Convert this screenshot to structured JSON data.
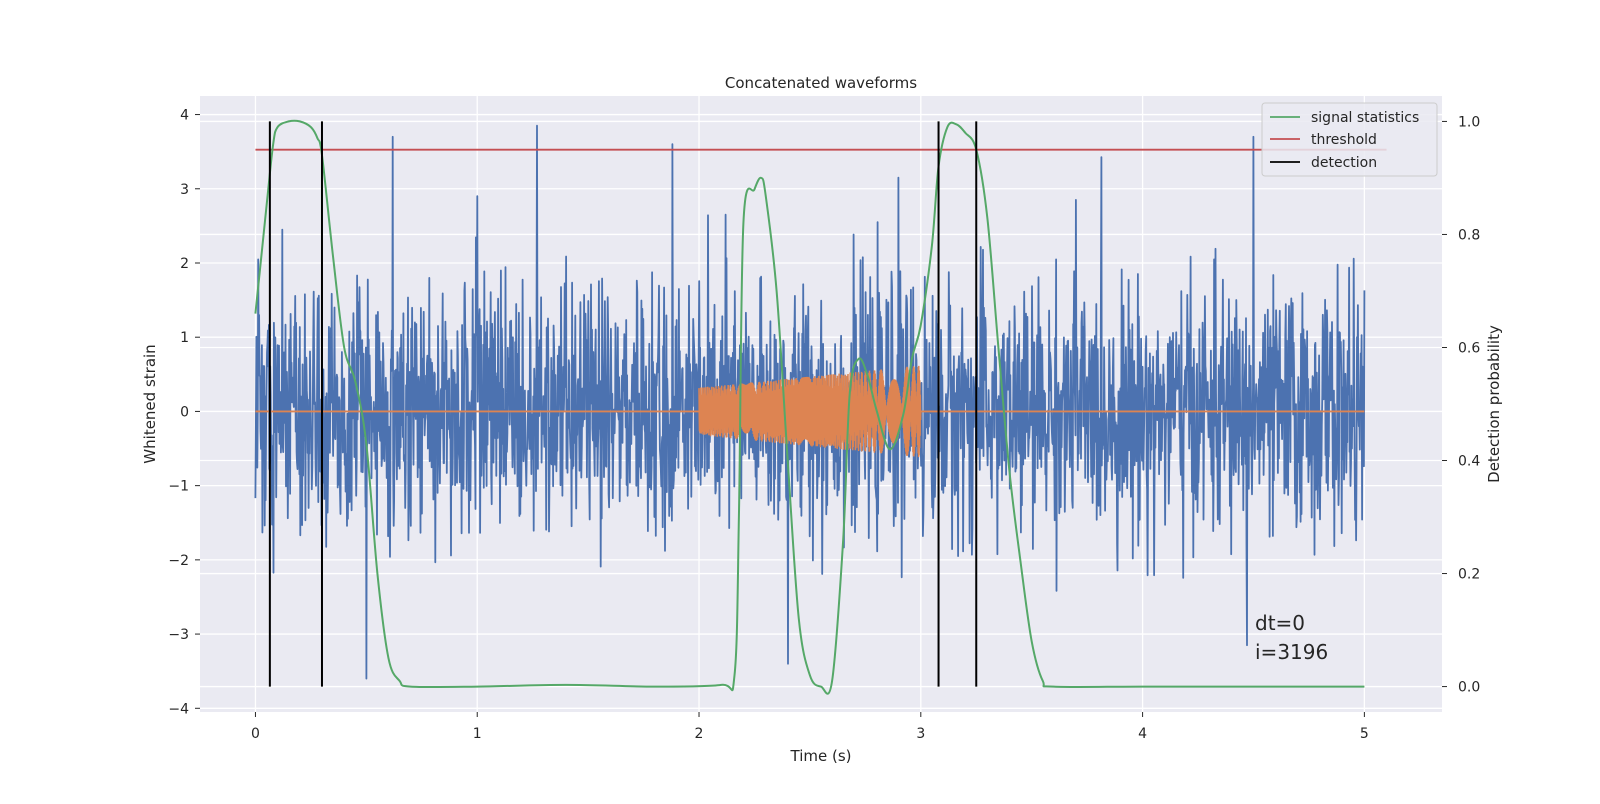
{
  "chart_data": {
    "type": "line",
    "title": "Concatenated waveforms",
    "xlabel": "Time (s)",
    "ylabel": "Whitened strain",
    "ylabel_right": "Detection probability",
    "xlim": [
      -0.25,
      5.35
    ],
    "ylim": [
      -4.05,
      4.25
    ],
    "ylim_right": [
      -0.045,
      1.045
    ],
    "x_ticks": [
      0,
      1,
      2,
      3,
      4,
      5
    ],
    "y_ticks": [
      -4,
      -3,
      -2,
      -1,
      0,
      1,
      2,
      3,
      4
    ],
    "y_ticks_right": [
      0.0,
      0.2,
      0.4,
      0.6,
      0.8,
      1.0
    ],
    "x_tick_labels": [
      "0",
      "1",
      "2",
      "3",
      "4",
      "5"
    ],
    "y_tick_labels": [
      "−4",
      "−3",
      "−2",
      "−1",
      "0",
      "1",
      "2",
      "3",
      "4"
    ],
    "y_tick_labels_right": [
      "0.0",
      "0.2",
      "0.4",
      "0.6",
      "0.8",
      "1.0"
    ],
    "grid": true,
    "legend_position": "top-right",
    "legend": [
      {
        "label": "signal statistics",
        "color": "#55a868"
      },
      {
        "label": "threshold",
        "color": "#c44e52"
      },
      {
        "label": "detection",
        "color": "#000000"
      }
    ],
    "series": [
      {
        "name": "whitened strain",
        "axis": "left",
        "color": "#4c72b0",
        "x_range": [
          0,
          5
        ],
        "spikes": [
          {
            "x": 0.62,
            "y": 3.7
          },
          {
            "x": 1.27,
            "y": 3.85
          },
          {
            "x": 1.88,
            "y": 3.6
          },
          {
            "x": 2.9,
            "y": 3.15
          },
          {
            "x": 4.5,
            "y": 3.7
          },
          {
            "x": 0.5,
            "y": -3.65
          },
          {
            "x": 2.4,
            "y": -3.4
          },
          {
            "x": 4.47,
            "y": -3.15
          },
          {
            "x": 1.0,
            "y": 2.9
          },
          {
            "x": 2.12,
            "y": 2.65
          },
          {
            "x": 0.12,
            "y": 2.45
          },
          {
            "x": 3.7,
            "y": 2.85
          }
        ]
      },
      {
        "name": "injected waveform",
        "axis": "left",
        "color": "#dd8452",
        "x": [
          2.0,
          3.0
        ],
        "amplitude_start": 0.32,
        "amplitude_end": 0.62,
        "baseline": 0
      },
      {
        "name": "signal statistics",
        "axis": "right",
        "color": "#55a868",
        "x": [
          0,
          0.05,
          0.08,
          0.1,
          0.15,
          0.2,
          0.25,
          0.28,
          0.3,
          0.35,
          0.4,
          0.45,
          0.5,
          0.55,
          0.6,
          0.65,
          0.7,
          1.0,
          1.4,
          1.8,
          2.1,
          2.16,
          2.18,
          2.2,
          2.25,
          2.28,
          2.3,
          2.35,
          2.4,
          2.45,
          2.5,
          2.55,
          2.6,
          2.65,
          2.68,
          2.72,
          2.76,
          2.8,
          2.86,
          2.92,
          2.96,
          3.0,
          3.05,
          3.08,
          3.12,
          3.16,
          3.2,
          3.25,
          3.3,
          3.35,
          3.4,
          3.45,
          3.5,
          3.55,
          3.6,
          4.0,
          4.5,
          5.0
        ],
        "values": [
          0.66,
          0.85,
          0.96,
          0.99,
          1.0,
          1.0,
          0.99,
          0.97,
          0.94,
          0.76,
          0.6,
          0.54,
          0.43,
          0.2,
          0.05,
          0.01,
          0.0,
          0.0,
          0.003,
          0.0,
          0.003,
          0.02,
          0.3,
          0.82,
          0.88,
          0.9,
          0.87,
          0.7,
          0.4,
          0.12,
          0.02,
          0.0,
          0.01,
          0.26,
          0.52,
          0.58,
          0.55,
          0.49,
          0.42,
          0.48,
          0.58,
          0.64,
          0.78,
          0.92,
          0.99,
          0.995,
          0.98,
          0.95,
          0.83,
          0.6,
          0.38,
          0.22,
          0.08,
          0.01,
          0.0,
          0.0,
          0.0,
          0.0
        ]
      },
      {
        "name": "threshold",
        "axis": "right",
        "color": "#c44e52",
        "x": [
          0,
          5.1
        ],
        "values": [
          0.95,
          0.95
        ]
      }
    ],
    "detections": [
      0.065,
      0.3,
      3.08,
      3.25
    ],
    "detection_range": [
      0.0,
      1.0
    ]
  },
  "annotation": {
    "line1": "dt=0",
    "line2": "i=3196"
  }
}
